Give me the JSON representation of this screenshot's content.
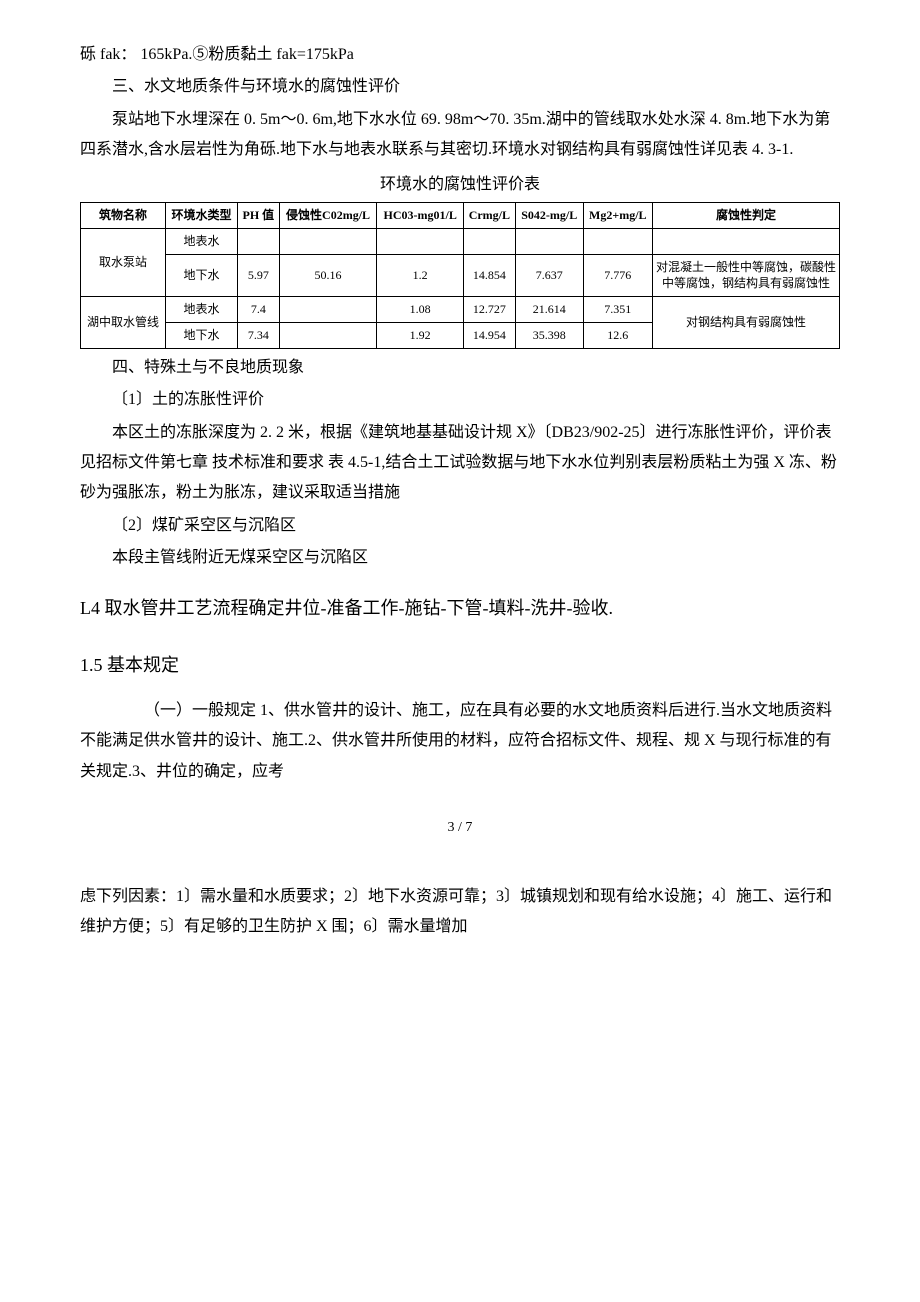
{
  "p1": "砾 fak：  165kPa.⑤粉质黏土  fak=175kPa",
  "p2": "三、水文地质条件与环境水的腐蚀性评价",
  "p3": "泵站地下水埋深在 0. 5m～0. 6m,地下水水位 69. 98m～70. 35m.湖中的管线取水处水深 4.  8m.地下水为第四系潜水,含水层岩性为角砾.地下水与地表水联系与其密切.环境水对钢结构具有弱腐蚀性详见表 4.  3-1.",
  "tableTitle": "环境水的腐蚀性评价表",
  "table": {
    "headers": [
      "筑物名称",
      "环境水类型",
      "PH 值",
      "侵蚀性C02mg/L",
      "HC03-mg01/L",
      "Crmg/L",
      "S042-mg/L",
      "Mg2+mg/L",
      "腐蚀性判定"
    ],
    "group1": {
      "name": "取水泵站",
      "rows": [
        [
          "地表水",
          "",
          "",
          "",
          "",
          "",
          "",
          ""
        ],
        [
          "地下水",
          "5.97",
          "50.16",
          "1.2",
          "14.854",
          "7.637",
          "7.776",
          "对混凝土一般性中等腐蚀，碳酸性中等腐蚀，钢结构具有弱腐蚀性"
        ]
      ]
    },
    "group2": {
      "name": "湖中取水管线",
      "rows": [
        [
          "地表水",
          "7.4",
          "",
          "1.08",
          "12.727",
          "21.614",
          "7.351"
        ],
        [
          "地下水",
          "7.34",
          "",
          "1.92",
          "14.954",
          "35.398",
          "12.6"
        ]
      ],
      "judge": "对钢结构具有弱腐蚀性"
    }
  },
  "p4": "四、特殊土与不良地质现象",
  "p5": "〔1〕土的冻胀性评价",
  "p6": "本区土的冻胀深度为 2. 2 米，根据《建筑地基基础设计规 X》〔DB23/902-25〕进行冻胀性评价，评价表见招标文件第七章  技术标准和要求  表 4.5-1,结合土工试验数据与地下水水位判别表层粉质粘土为强 X 冻、粉砂为强胀冻，粉土为胀冻，建议采取适当措施",
  "p7": "〔2〕煤矿采空区与沉陷区",
  "p8": "本段主管线附近无煤采空区与沉陷区",
  "h1": "L4 取水管井工艺流程确定井位-准备工作-施钻-下管-填料-洗井-验收.",
  "h2": "1.5 基本规定",
  "p9": "（一）一般规定 1、供水管井的设计、施工，应在具有必要的水文地质资料后进行.当水文地质资料不能满足供水管井的设计、施工.2、供水管井所使用的材料，应符合招标文件、规程、规 X 与现行标准的有关规定.3、井位的确定，应考",
  "pageNum": "3 / 7",
  "p10": "虑下列因素：1〕需水量和水质要求；2〕地下水资源可靠；3〕城镇规划和现有给水设施；4〕施工、运行和维护方便；5〕有足够的卫生防护 X 围；6〕需水量增加"
}
